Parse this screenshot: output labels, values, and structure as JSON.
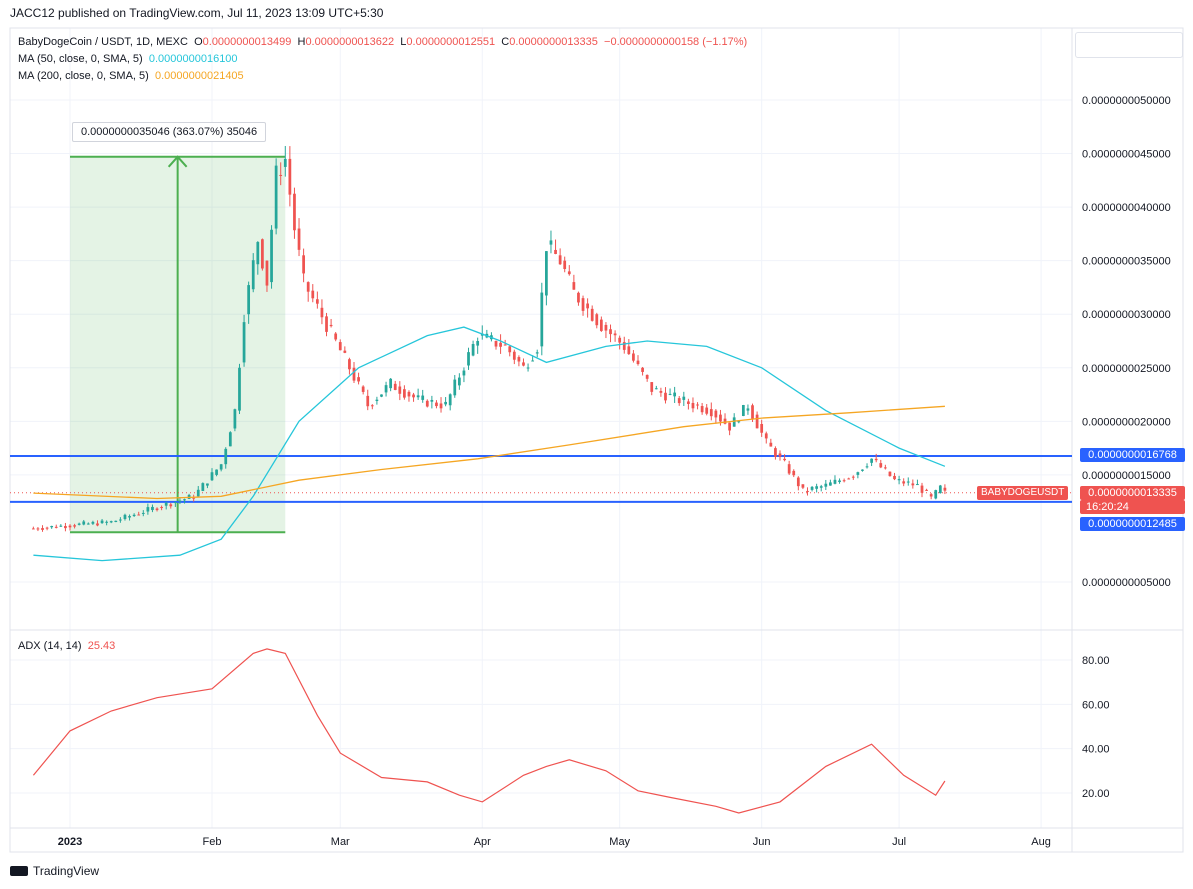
{
  "header": {
    "published": "JACC12 published on TradingView.com, Jul 11, 2023 13:09 UTC+5:30"
  },
  "legend": {
    "symbol": "BabyDogeCoin / USDT, 1D, MEXC",
    "o_label": "O",
    "o_value": "0.0000000013499",
    "h_label": "H",
    "h_value": "0.0000000013622",
    "l_label": "L",
    "l_value": "0.0000000012551",
    "c_label": "C",
    "c_value": "0.0000000013335",
    "change": "−0.0000000000158 (−1.17%)",
    "ma50_label": "MA (50, close, 0, SMA, 5)",
    "ma50_value": "0.0000000016100",
    "ma200_label": "MA (200, close, 0, SMA, 5)",
    "ma200_value": "0.0000000021405",
    "adx_label": "ADX (14, 14)",
    "adx_value": "25.43"
  },
  "measure_label": "0.0000000035046 (363.07%) 35046",
  "symbol_tag": "BABYDOGEUSDT",
  "price_tags": {
    "upper_line": "0.0000000016768",
    "last_price": "0.0000000013335",
    "countdown": "16:20:24",
    "lower_line": "0.0000000012485"
  },
  "footer": {
    "brand": "TradingView"
  },
  "colors": {
    "up": "#26a69a",
    "down": "#ef5350",
    "ma50": "#26c6da",
    "ma200": "#f5a623",
    "adx": "#ef5350",
    "hline": "#2962ff",
    "measure": "#4caf50"
  },
  "chart_data": [
    {
      "type": "candlestick",
      "x_ticks": [
        "2023",
        "Feb",
        "Mar",
        "Apr",
        "May",
        "Jun",
        "Jul",
        "Aug"
      ],
      "y_ticks": [
        "0.0000000050000",
        "0.0000000045000",
        "0.0000000040000",
        "0.0000000035000",
        "0.0000000030000",
        "0.0000000025000",
        "0.0000000020000",
        "0.0000000015000",
        "0.0000000005000"
      ],
      "y_tick_values": [
        50,
        45,
        40,
        35,
        30,
        25,
        20,
        15,
        5
      ],
      "y_unit": "1e-10 USDT",
      "ylim": [
        0,
        55
      ],
      "price_anchors": [
        [
          "2022-12-24",
          10.0
        ],
        [
          "2023-01-01",
          10.3
        ],
        [
          "2023-01-10",
          10.6
        ],
        [
          "2023-01-20",
          12.0
        ],
        [
          "2023-01-28",
          13.0
        ],
        [
          "2023-02-03",
          16.0
        ],
        [
          "2023-02-06",
          21.0
        ],
        [
          "2023-02-08",
          30.0
        ],
        [
          "2023-02-11",
          37.0
        ],
        [
          "2023-02-13",
          33.0
        ],
        [
          "2023-02-15",
          43.0
        ],
        [
          "2023-02-17",
          44.5
        ],
        [
          "2023-02-19",
          38.0
        ],
        [
          "2023-02-21",
          33.0
        ],
        [
          "2023-02-26",
          29.0
        ],
        [
          "2023-03-03",
          25.0
        ],
        [
          "2023-03-07",
          21.5
        ],
        [
          "2023-03-12",
          23.5
        ],
        [
          "2023-03-18",
          22.0
        ],
        [
          "2023-03-24",
          21.5
        ],
        [
          "2023-03-31",
          28.0
        ],
        [
          "2023-04-06",
          27.0
        ],
        [
          "2023-04-10",
          25.0
        ],
        [
          "2023-04-13",
          27.0
        ],
        [
          "2023-04-15",
          36.5
        ],
        [
          "2023-04-18",
          35.0
        ],
        [
          "2023-04-21",
          32.0
        ],
        [
          "2023-04-27",
          29.0
        ],
        [
          "2023-05-02",
          27.0
        ],
        [
          "2023-05-08",
          23.0
        ],
        [
          "2023-05-14",
          22.0
        ],
        [
          "2023-05-21",
          21.0
        ],
        [
          "2023-05-25",
          19.5
        ],
        [
          "2023-05-29",
          21.5
        ],
        [
          "2023-06-02",
          18.0
        ],
        [
          "2023-06-06",
          16.0
        ],
        [
          "2023-06-10",
          13.5
        ],
        [
          "2023-06-15",
          14.0
        ],
        [
          "2023-06-21",
          15.0
        ],
        [
          "2023-06-25",
          16.5
        ],
        [
          "2023-06-30",
          14.5
        ],
        [
          "2023-07-05",
          14.0
        ],
        [
          "2023-07-08",
          12.8
        ],
        [
          "2023-07-10",
          13.8
        ],
        [
          "2023-07-11",
          13.3
        ]
      ],
      "ma50_points": [
        [
          "2022-12-24",
          7.5
        ],
        [
          "2023-01-08",
          7.0
        ],
        [
          "2023-01-25",
          7.5
        ],
        [
          "2023-02-03",
          9.0
        ],
        [
          "2023-02-10",
          13.0
        ],
        [
          "2023-02-20",
          20.0
        ],
        [
          "2023-03-05",
          25.0
        ],
        [
          "2023-03-20",
          28.0
        ],
        [
          "2023-03-28",
          28.8
        ],
        [
          "2023-04-05",
          27.5
        ],
        [
          "2023-04-15",
          25.5
        ],
        [
          "2023-04-28",
          27.0
        ],
        [
          "2023-05-07",
          27.5
        ],
        [
          "2023-05-20",
          27.0
        ],
        [
          "2023-06-01",
          25.0
        ],
        [
          "2023-06-15",
          21.0
        ],
        [
          "2023-07-01",
          17.5
        ],
        [
          "2023-07-11",
          15.8
        ]
      ],
      "ma200_points": [
        [
          "2022-12-24",
          13.3
        ],
        [
          "2023-01-20",
          12.8
        ],
        [
          "2023-02-03",
          13.0
        ],
        [
          "2023-02-20",
          14.5
        ],
        [
          "2023-03-10",
          15.5
        ],
        [
          "2023-03-31",
          16.5
        ],
        [
          "2023-04-20",
          17.8
        ],
        [
          "2023-05-15",
          19.5
        ],
        [
          "2023-06-01",
          20.3
        ],
        [
          "2023-06-20",
          20.8
        ],
        [
          "2023-07-11",
          21.4
        ]
      ],
      "horizontal_lines": [
        16.768,
        12.485
      ],
      "last_price": 13.335,
      "measure": {
        "from_date": "2023-01-01",
        "to_date": "2023-02-17",
        "from_price": 9.65,
        "to_price": 44.7
      }
    },
    {
      "type": "line",
      "series": [
        {
          "name": "ADX (14, 14)"
        }
      ],
      "y_ticks": [
        "80.00",
        "60.00",
        "40.00",
        "20.00"
      ],
      "y_tick_values": [
        80,
        60,
        40,
        20
      ],
      "ylim": [
        5,
        93
      ],
      "adx_points": [
        [
          "2022-12-24",
          28
        ],
        [
          "2023-01-01",
          48
        ],
        [
          "2023-01-10",
          57
        ],
        [
          "2023-01-20",
          63
        ],
        [
          "2023-02-01",
          67
        ],
        [
          "2023-02-10",
          83
        ],
        [
          "2023-02-13",
          85
        ],
        [
          "2023-02-17",
          83
        ],
        [
          "2023-02-24",
          55
        ],
        [
          "2023-03-01",
          38
        ],
        [
          "2023-03-10",
          27
        ],
        [
          "2023-03-20",
          25
        ],
        [
          "2023-03-27",
          19
        ],
        [
          "2023-04-01",
          16
        ],
        [
          "2023-04-10",
          28
        ],
        [
          "2023-04-15",
          32
        ],
        [
          "2023-04-20",
          35
        ],
        [
          "2023-04-28",
          30
        ],
        [
          "2023-05-05",
          21
        ],
        [
          "2023-05-12",
          18
        ],
        [
          "2023-05-22",
          14
        ],
        [
          "2023-05-27",
          11
        ],
        [
          "2023-06-05",
          16
        ],
        [
          "2023-06-15",
          32
        ],
        [
          "2023-06-25",
          42
        ],
        [
          "2023-07-02",
          28
        ],
        [
          "2023-07-09",
          19
        ],
        [
          "2023-07-11",
          25.43
        ]
      ]
    }
  ]
}
